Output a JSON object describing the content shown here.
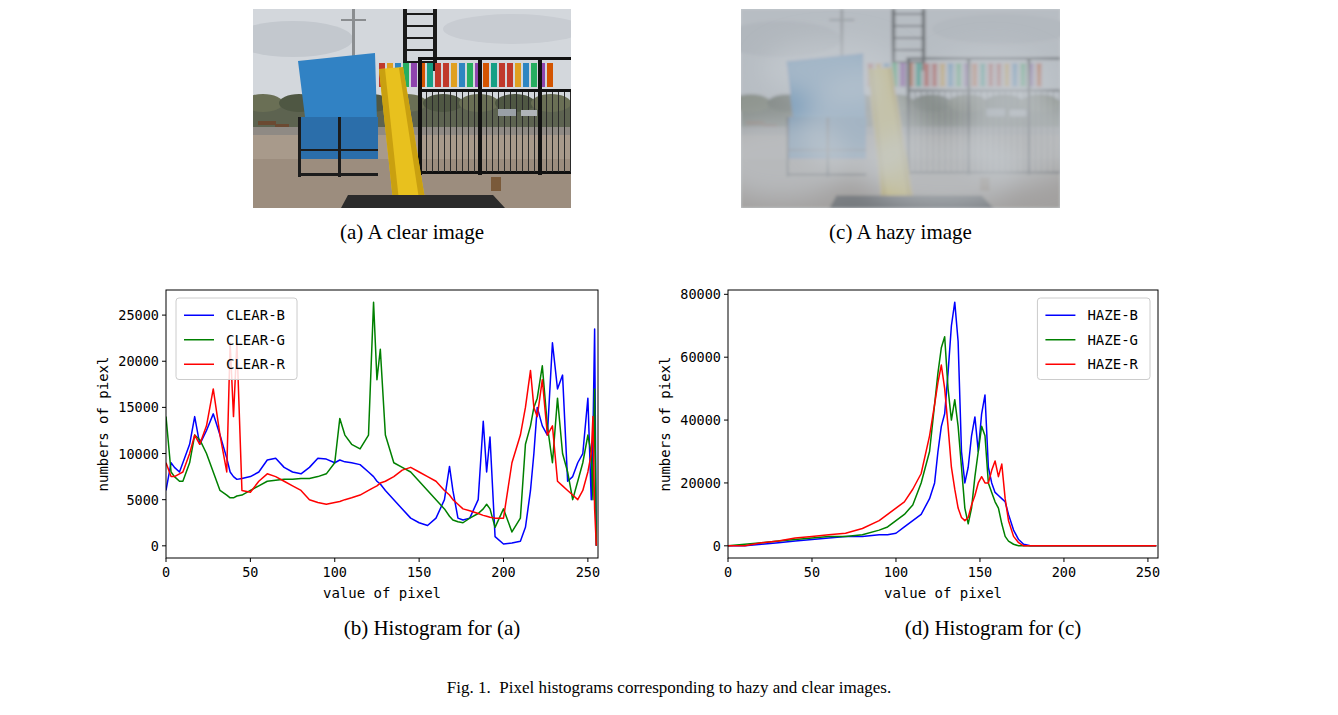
{
  "figure": {
    "caption": "Fig. 1.  Pixel histograms corresponding to hazy and clear images.",
    "images": [
      {
        "caption": "(a) A clear image"
      },
      {
        "caption": "(c) A hazy image"
      }
    ]
  },
  "chart_data": [
    {
      "type": "line",
      "title": "(b) Histogram for (a)",
      "x_label": "value of pixel",
      "y_label": "numbers of piexl",
      "legend": "upper left",
      "grid": false,
      "xlim": [
        0,
        256
      ],
      "xticks": [
        0,
        50,
        100,
        150,
        200,
        250
      ],
      "ylim": [
        -1320,
        27720
      ],
      "yticks": [
        0,
        5000,
        10000,
        15000,
        20000,
        25000
      ],
      "x": [
        0,
        3,
        5,
        8,
        10,
        14,
        17,
        20,
        24,
        28,
        32,
        36,
        38,
        40,
        42,
        45,
        50,
        55,
        60,
        65,
        70,
        75,
        80,
        85,
        90,
        95,
        100,
        103,
        106,
        110,
        115,
        120,
        123,
        125,
        127,
        130,
        135,
        140,
        145,
        150,
        155,
        160,
        165,
        168,
        170,
        173,
        176,
        180,
        185,
        188,
        190,
        192,
        195,
        200,
        205,
        210,
        213,
        216,
        218,
        220,
        223,
        226,
        229,
        232,
        235,
        238,
        241,
        244,
        247,
        250,
        252,
        253,
        254,
        255
      ],
      "series": [
        {
          "name": "CLEAR-B",
          "color": "#0000ff",
          "values": [
            6000,
            9000,
            8500,
            8000,
            9000,
            11000,
            14000,
            11000,
            12500,
            14300,
            12000,
            9500,
            8000,
            7500,
            7200,
            7300,
            7500,
            8000,
            9300,
            9500,
            8500,
            8000,
            7800,
            8500,
            9500,
            9400,
            9000,
            9300,
            9100,
            9000,
            8800,
            8000,
            7500,
            7000,
            6700,
            6000,
            5000,
            4000,
            3000,
            2500,
            2200,
            3000,
            5000,
            8600,
            6000,
            3000,
            2800,
            3000,
            5000,
            13500,
            8000,
            11800,
            1000,
            200,
            300,
            500,
            2000,
            6000,
            10000,
            15000,
            13000,
            12000,
            22000,
            17000,
            18500,
            7000,
            7500,
            9000,
            10000,
            16000,
            5000,
            12000,
            23500,
            0
          ]
        },
        {
          "name": "CLEAR-G",
          "color": "#008000",
          "values": [
            14000,
            8000,
            7500,
            7000,
            7000,
            9000,
            12000,
            11500,
            10000,
            8000,
            6000,
            5500,
            5200,
            5200,
            5400,
            5500,
            6000,
            6500,
            7000,
            7100,
            7200,
            7200,
            7300,
            7300,
            7500,
            7800,
            9000,
            13800,
            12000,
            11000,
            10500,
            12000,
            26400,
            18000,
            21300,
            12000,
            9000,
            8500,
            8000,
            7000,
            6000,
            5000,
            4000,
            3200,
            2800,
            2600,
            2500,
            3000,
            3500,
            4000,
            4500,
            4000,
            2000,
            4000,
            1500,
            3000,
            11000,
            13000,
            15000,
            16000,
            19500,
            13000,
            9000,
            16000,
            10000,
            8000,
            5000,
            7000,
            9000,
            12000,
            10000,
            5000,
            17000,
            0
          ]
        },
        {
          "name": "CLEAR-R",
          "color": "#ff0000",
          "values": [
            9000,
            7500,
            7500,
            7800,
            8000,
            10000,
            12000,
            11000,
            13000,
            17000,
            12000,
            8000,
            22000,
            14000,
            22000,
            6000,
            5800,
            7000,
            7800,
            7500,
            7000,
            6500,
            6000,
            5000,
            4700,
            4500,
            4700,
            4800,
            5000,
            5200,
            5500,
            6000,
            6300,
            6500,
            6800,
            7000,
            7500,
            8200,
            8500,
            8000,
            7500,
            7000,
            6000,
            5500,
            5000,
            4500,
            4000,
            3800,
            3500,
            3300,
            3200,
            3100,
            3000,
            3000,
            9000,
            12000,
            15000,
            19000,
            15000,
            14000,
            18000,
            12000,
            13000,
            7000,
            6500,
            6000,
            5500,
            5000,
            6000,
            8000,
            10000,
            14000,
            4000,
            0
          ]
        }
      ]
    },
    {
      "type": "line",
      "title": "(d) Histogram for (c)",
      "x_label": "value of pixel",
      "y_label": "numbers of piexl",
      "legend": "upper right",
      "grid": false,
      "xlim": [
        0,
        256
      ],
      "xticks": [
        0,
        50,
        100,
        150,
        200,
        250
      ],
      "ylim": [
        -3875,
        81375
      ],
      "yticks": [
        0,
        20000,
        40000,
        60000,
        80000
      ],
      "x": [
        0,
        10,
        20,
        30,
        40,
        50,
        60,
        70,
        80,
        90,
        95,
        100,
        105,
        110,
        115,
        120,
        123,
        125,
        127,
        129,
        131,
        133,
        135,
        137,
        139,
        141,
        143,
        145,
        147,
        149,
        151,
        153,
        155,
        157,
        159,
        161,
        163,
        165,
        167,
        170,
        173,
        176,
        180,
        190,
        200,
        210,
        220,
        230,
        240,
        250,
        255
      ],
      "series": [
        {
          "name": "HAZE-B",
          "color": "#0000ff",
          "values": [
            0,
            0,
            500,
            1000,
            1500,
            2000,
            2500,
            3000,
            3000,
            3500,
            3500,
            4000,
            6000,
            8000,
            10000,
            15000,
            20000,
            30000,
            38000,
            42000,
            55000,
            70000,
            77500,
            65000,
            30000,
            20000,
            25000,
            35000,
            41000,
            30000,
            42000,
            48000,
            25000,
            20000,
            17000,
            16000,
            15000,
            14000,
            10000,
            5000,
            2000,
            500,
            0,
            0,
            0,
            0,
            0,
            0,
            0,
            0,
            0
          ]
        },
        {
          "name": "HAZE-G",
          "color": "#008000",
          "values": [
            0,
            500,
            1000,
            1500,
            2000,
            2500,
            3000,
            3000,
            3500,
            5000,
            6000,
            8000,
            10000,
            13000,
            20000,
            30000,
            45000,
            55000,
            63000,
            66500,
            50000,
            40000,
            46500,
            38000,
            25000,
            12000,
            7000,
            12000,
            22000,
            30000,
            38000,
            35000,
            20000,
            17000,
            14000,
            12000,
            7000,
            3000,
            1500,
            500,
            0,
            0,
            0,
            0,
            0,
            0,
            0,
            0,
            0,
            0,
            0
          ]
        },
        {
          "name": "HAZE-R",
          "color": "#ff0000",
          "values": [
            0,
            0,
            1000,
            1500,
            2500,
            3000,
            3500,
            4000,
            5500,
            8000,
            10000,
            12000,
            14000,
            18000,
            23000,
            35000,
            45000,
            52000,
            57500,
            50000,
            38000,
            25000,
            18000,
            12000,
            9000,
            8000,
            9000,
            13000,
            16000,
            20000,
            22000,
            20000,
            20000,
            24000,
            27000,
            22000,
            26000,
            15000,
            8000,
            3000,
            1000,
            0,
            0,
            0,
            0,
            0,
            0,
            0,
            0,
            0,
            0
          ]
        }
      ]
    }
  ]
}
